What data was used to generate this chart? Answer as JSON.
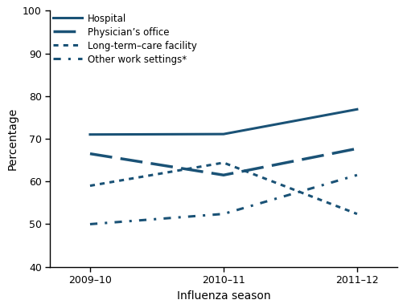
{
  "seasons": [
    "2009–10",
    "2010–11",
    "2011–12"
  ],
  "x_positions": [
    0,
    1,
    2
  ],
  "hospital": [
    71.0,
    71.1,
    76.9
  ],
  "physician": [
    66.5,
    61.5,
    67.7
  ],
  "ltcf": [
    59.0,
    64.4,
    52.4
  ],
  "other": [
    50.0,
    52.4,
    61.5
  ],
  "ylabel": "Percentage",
  "xlabel": "Influenza season",
  "ylim": [
    40,
    100
  ],
  "yticks": [
    40,
    50,
    60,
    70,
    80,
    90,
    100
  ],
  "color": "#1a5276",
  "bg_color": "#ffffff",
  "legend_labels": [
    "Hospital",
    "Physician’s office",
    "Long-term–care facility",
    "Other work settings*"
  ],
  "figsize": [
    5.02,
    3.84
  ],
  "dpi": 100
}
